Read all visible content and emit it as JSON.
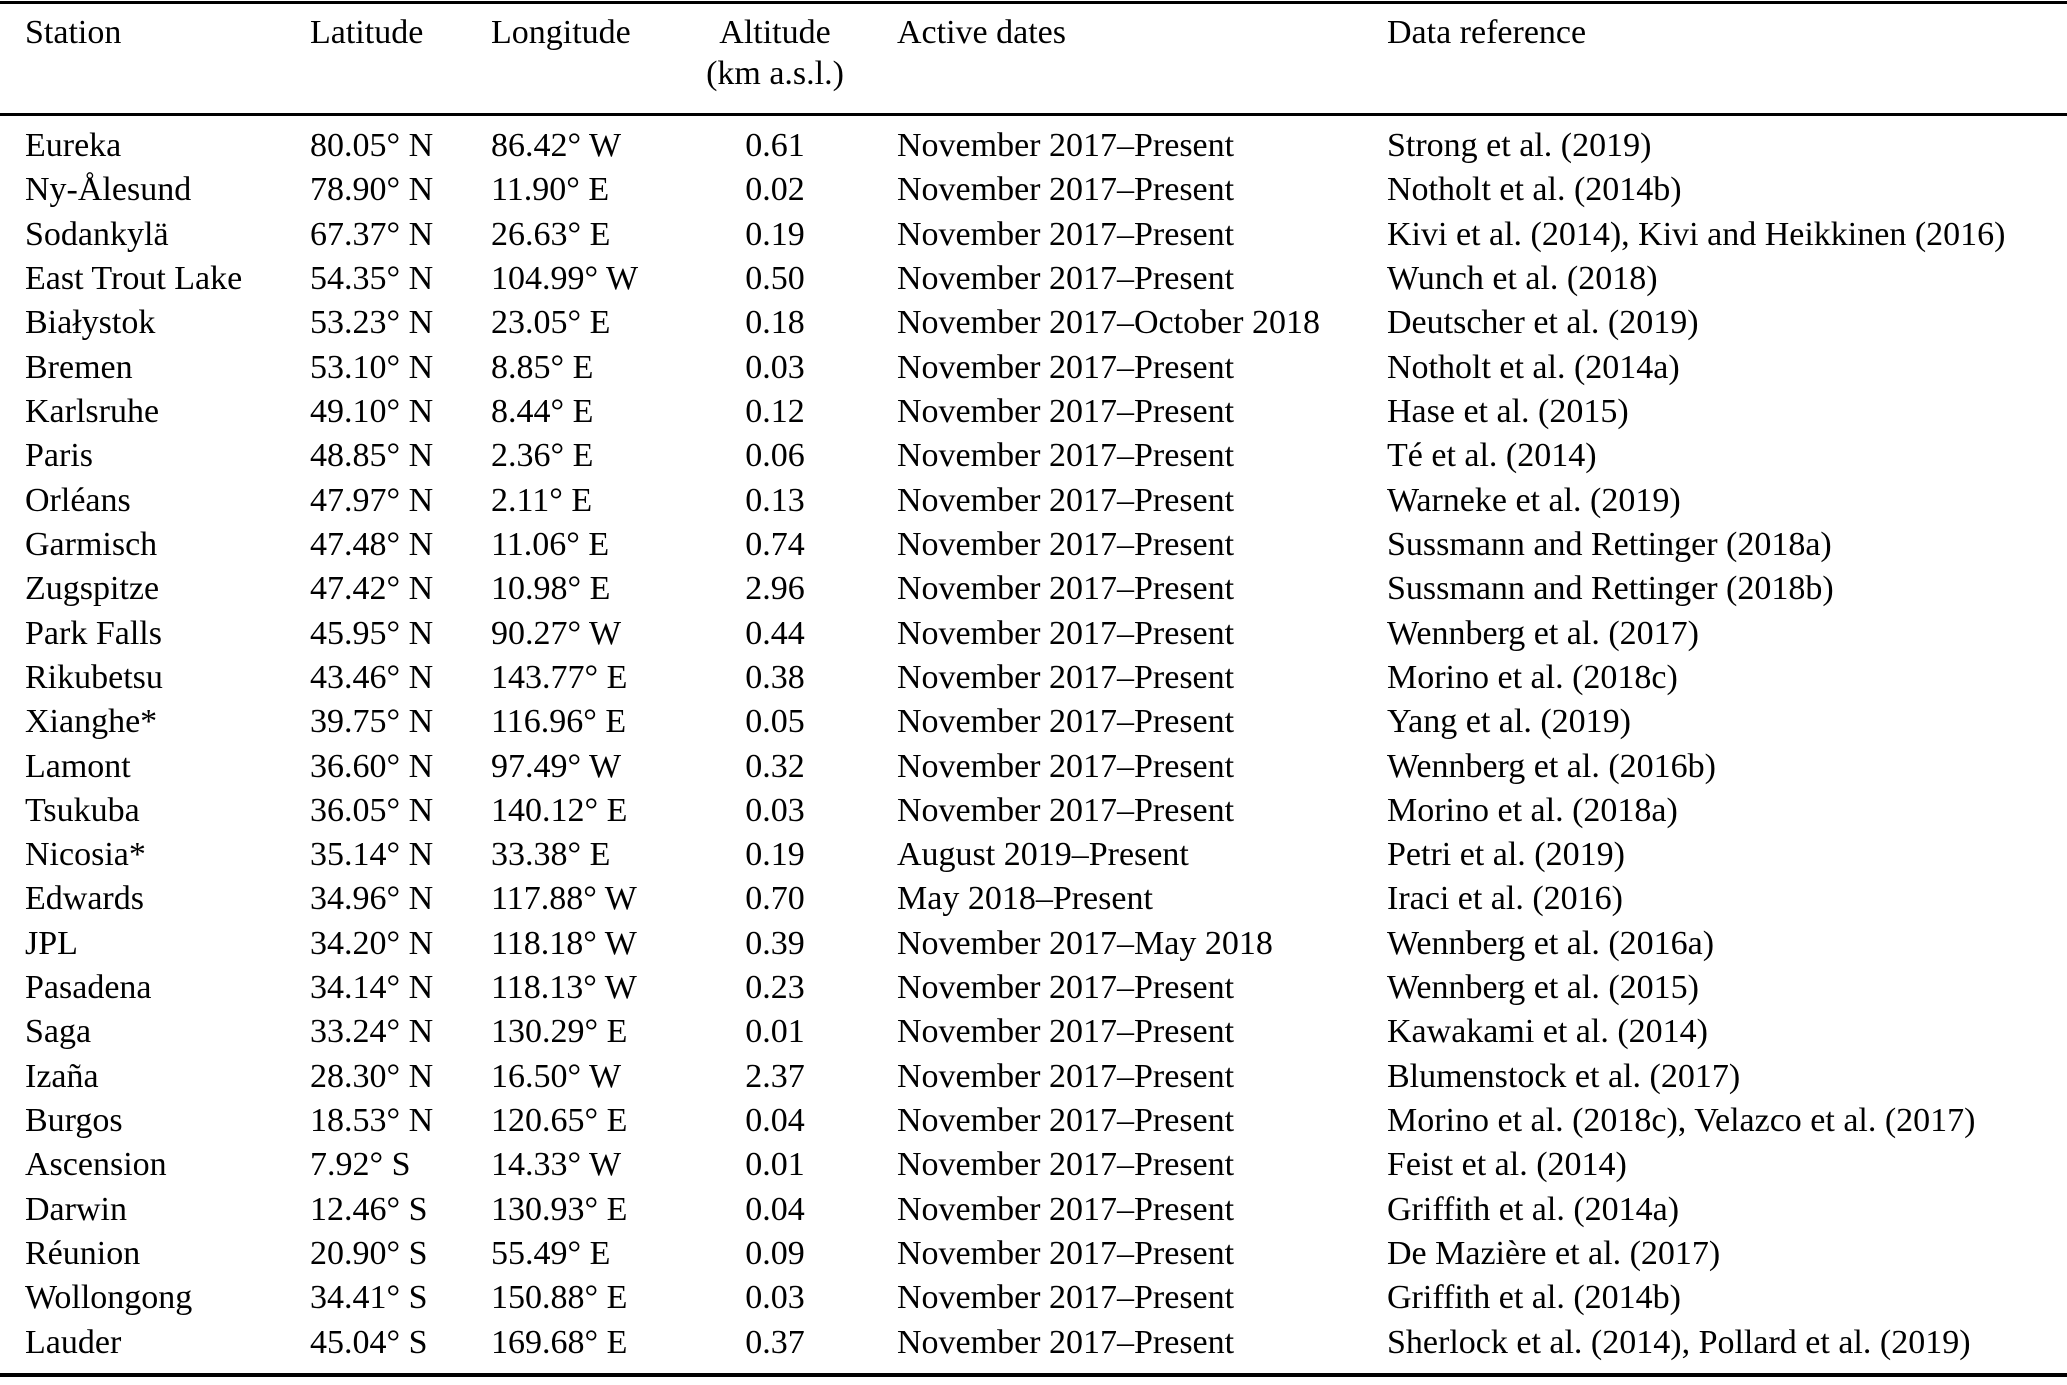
{
  "table": {
    "header": {
      "station": "Station",
      "latitude": "Latitude",
      "longitude": "Longitude",
      "altitude_line1": "Altitude",
      "altitude_line2": "(km a.s.l.)",
      "active_dates": "Active dates",
      "data_reference": "Data reference"
    },
    "rows": [
      {
        "station": "Eureka",
        "lat": "80.05° N",
        "lon": "86.42° W",
        "alt": "0.61",
        "dates": "November 2017–Present",
        "ref": "Strong et al. (2019)"
      },
      {
        "station": "Ny-Ålesund",
        "lat": "78.90° N",
        "lon": "11.90° E",
        "alt": "0.02",
        "dates": "November 2017–Present",
        "ref": "Notholt et al. (2014b)"
      },
      {
        "station": "Sodankylä",
        "lat": "67.37° N",
        "lon": "26.63° E",
        "alt": "0.19",
        "dates": "November 2017–Present",
        "ref": "Kivi et al. (2014), Kivi and Heikkinen (2016)"
      },
      {
        "station": "East Trout Lake",
        "lat": "54.35° N",
        "lon": "104.99° W",
        "alt": "0.50",
        "dates": "November 2017–Present",
        "ref": "Wunch et al. (2018)"
      },
      {
        "station": "Białystok",
        "lat": "53.23° N",
        "lon": "23.05° E",
        "alt": "0.18",
        "dates": "November 2017–October 2018",
        "ref": "Deutscher et al. (2019)"
      },
      {
        "station": "Bremen",
        "lat": "53.10° N",
        "lon": "8.85° E",
        "alt": "0.03",
        "dates": "November 2017–Present",
        "ref": "Notholt et al. (2014a)"
      },
      {
        "station": "Karlsruhe",
        "lat": "49.10° N",
        "lon": "8.44° E",
        "alt": "0.12",
        "dates": "November 2017–Present",
        "ref": "Hase et al. (2015)"
      },
      {
        "station": "Paris",
        "lat": "48.85° N",
        "lon": "2.36° E",
        "alt": "0.06",
        "dates": "November 2017–Present",
        "ref": "Té et al. (2014)"
      },
      {
        "station": "Orléans",
        "lat": "47.97° N",
        "lon": "2.11° E",
        "alt": "0.13",
        "dates": "November 2017–Present",
        "ref": "Warneke et al. (2019)"
      },
      {
        "station": "Garmisch",
        "lat": "47.48° N",
        "lon": "11.06° E",
        "alt": "0.74",
        "dates": "November 2017–Present",
        "ref": "Sussmann and Rettinger (2018a)"
      },
      {
        "station": "Zugspitze",
        "lat": "47.42° N",
        "lon": "10.98° E",
        "alt": "2.96",
        "dates": "November 2017–Present",
        "ref": "Sussmann and Rettinger (2018b)"
      },
      {
        "station": "Park Falls",
        "lat": "45.95° N",
        "lon": "90.27° W",
        "alt": "0.44",
        "dates": "November 2017–Present",
        "ref": "Wennberg et al. (2017)"
      },
      {
        "station": "Rikubetsu",
        "lat": "43.46° N",
        "lon": "143.77° E",
        "alt": "0.38",
        "dates": "November 2017–Present",
        "ref": "Morino et al. (2018c)"
      },
      {
        "station": "Xianghe*",
        "lat": "39.75° N",
        "lon": "116.96° E",
        "alt": "0.05",
        "dates": "November 2017–Present",
        "ref": "Yang et al. (2019)"
      },
      {
        "station": "Lamont",
        "lat": "36.60° N",
        "lon": "97.49° W",
        "alt": "0.32",
        "dates": "November 2017–Present",
        "ref": "Wennberg et al. (2016b)"
      },
      {
        "station": "Tsukuba",
        "lat": "36.05° N",
        "lon": "140.12° E",
        "alt": "0.03",
        "dates": "November 2017–Present",
        "ref": "Morino et al. (2018a)"
      },
      {
        "station": "Nicosia*",
        "lat": "35.14° N",
        "lon": "33.38° E",
        "alt": "0.19",
        "dates": "August 2019–Present",
        "ref": "Petri et al. (2019)"
      },
      {
        "station": "Edwards",
        "lat": "34.96° N",
        "lon": "117.88° W",
        "alt": "0.70",
        "dates": "May 2018–Present",
        "ref": "Iraci et al. (2016)"
      },
      {
        "station": "JPL",
        "lat": "34.20° N",
        "lon": "118.18° W",
        "alt": "0.39",
        "dates": "November 2017–May 2018",
        "ref": "Wennberg et al. (2016a)"
      },
      {
        "station": "Pasadena",
        "lat": "34.14° N",
        "lon": "118.13° W",
        "alt": "0.23",
        "dates": "November 2017–Present",
        "ref": "Wennberg et al. (2015)"
      },
      {
        "station": "Saga",
        "lat": "33.24° N",
        "lon": "130.29° E",
        "alt": "0.01",
        "dates": "November 2017–Present",
        "ref": "Kawakami et al. (2014)"
      },
      {
        "station": "Izaña",
        "lat": "28.30° N",
        "lon": "16.50° W",
        "alt": "2.37",
        "dates": "November 2017–Present",
        "ref": "Blumenstock et al. (2017)"
      },
      {
        "station": "Burgos",
        "lat": "18.53° N",
        "lon": "120.65° E",
        "alt": "0.04",
        "dates": "November 2017–Present",
        "ref": "Morino et al. (2018c), Velazco et al. (2017)"
      },
      {
        "station": "Ascension",
        "lat": "7.92° S",
        "lon": "14.33° W",
        "alt": "0.01",
        "dates": "November 2017–Present",
        "ref": "Feist et al. (2014)"
      },
      {
        "station": "Darwin",
        "lat": "12.46° S",
        "lon": "130.93° E",
        "alt": "0.04",
        "dates": "November 2017–Present",
        "ref": "Griffith et al. (2014a)"
      },
      {
        "station": "Réunion",
        "lat": "20.90° S",
        "lon": "55.49° E",
        "alt": "0.09",
        "dates": "November 2017–Present",
        "ref": "De Mazière et al. (2017)"
      },
      {
        "station": "Wollongong",
        "lat": "34.41° S",
        "lon": "150.88° E",
        "alt": "0.03",
        "dates": "November 2017–Present",
        "ref": "Griffith et al. (2014b)"
      },
      {
        "station": "Lauder",
        "lat": "45.04° S",
        "lon": "169.68° E",
        "alt": "0.37",
        "dates": "November 2017–Present",
        "ref": "Sherlock et al. (2014), Pollard et al. (2019)"
      }
    ]
  }
}
